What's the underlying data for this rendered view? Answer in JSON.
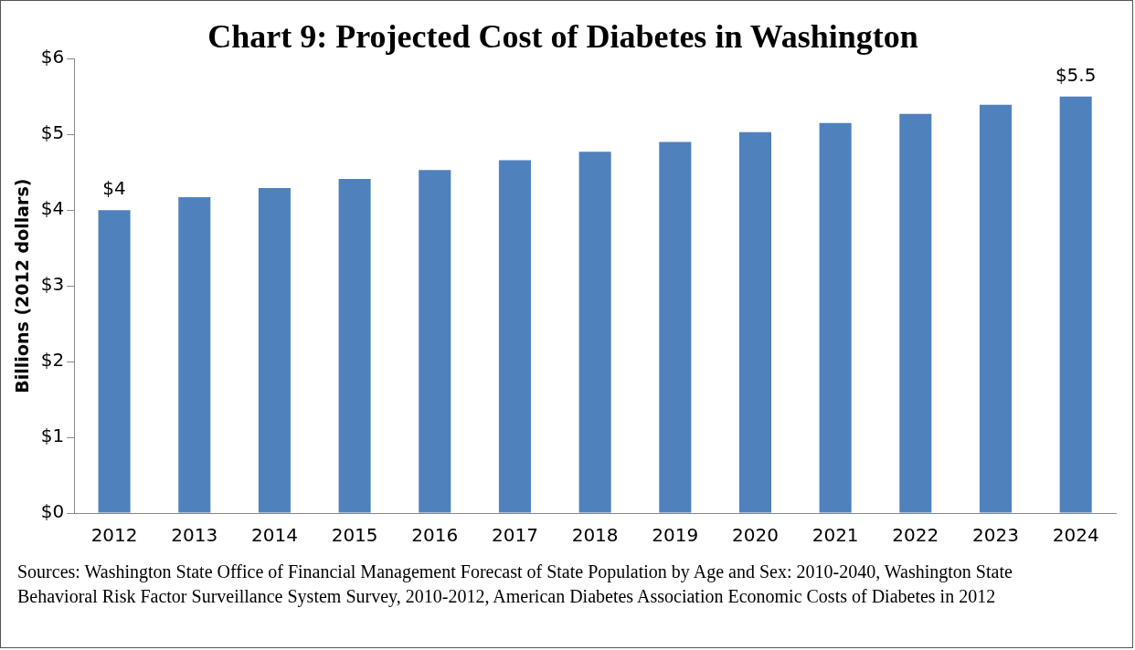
{
  "chart_data": {
    "type": "bar",
    "title": "Chart 9: Projected Cost of Diabetes in Washington",
    "ylabel": "Billions (2012 dollars)",
    "categories": [
      "2012",
      "2013",
      "2014",
      "2015",
      "2016",
      "2017",
      "2018",
      "2019",
      "2020",
      "2021",
      "2022",
      "2023",
      "2024"
    ],
    "values": [
      4,
      4.17,
      4.29,
      4.41,
      4.53,
      4.66,
      4.77,
      4.9,
      5.03,
      5.15,
      5.27,
      5.39,
      5.5
    ],
    "value_labels": [
      "$4",
      null,
      null,
      null,
      null,
      null,
      null,
      null,
      null,
      null,
      null,
      null,
      "$5.5"
    ],
    "color": "#4f81bd",
    "ylim": [
      0,
      6
    ],
    "yticks": [
      {
        "value": 0,
        "label": "$0"
      },
      {
        "value": 1,
        "label": "$1"
      },
      {
        "value": 2,
        "label": "$2"
      },
      {
        "value": 3,
        "label": "$3"
      },
      {
        "value": 4,
        "label": "$4"
      },
      {
        "value": 5,
        "label": "$5"
      },
      {
        "value": 6,
        "label": "$6"
      }
    ],
    "grid": false,
    "legend": false,
    "annotations": [
      "Sources: Washington State Office of Financial Management Forecast of State Population by Age and Sex: 2010-2040, Washington State Behavioral Risk Factor Surveillance System Survey, 2010-2012, American Diabetes Association Economic Costs of Diabetes in 2012"
    ]
  }
}
